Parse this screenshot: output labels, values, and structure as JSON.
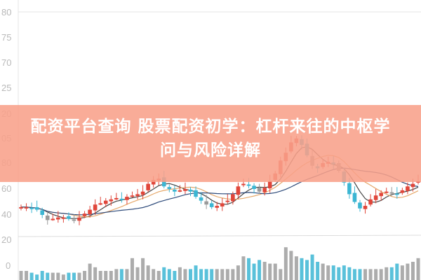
{
  "headline": {
    "line1": "配资平台查询 股票配资初学：杠杆来往的中枢学",
    "line2": "问与风险详解"
  },
  "colors": {
    "up": "#e0463a",
    "down": "#3cb6d3",
    "neutral": "#9a9a9a",
    "overlay": "#f8a08a",
    "ma_short": "#444444",
    "ma_mid": "#e6a86a",
    "ma_long": "#2d4a7a"
  },
  "chart_data": {
    "type": "candlestick",
    "price_tick_labels": [
      "80",
      "75",
      "70",
      "25",
      "20",
      "05",
      "80",
      "60",
      "40"
    ],
    "volume_tick_labels": [
      "20",
      "0"
    ],
    "closes": [
      46,
      46,
      45,
      44,
      40,
      36,
      37,
      38,
      38,
      37,
      36,
      38,
      41,
      44,
      48,
      49,
      51,
      52,
      53,
      52,
      54,
      55,
      56,
      58,
      64,
      67,
      68,
      62,
      60,
      58,
      59,
      60,
      58,
      54,
      51,
      48,
      46,
      47,
      49,
      51,
      56,
      62,
      64,
      63,
      60,
      58,
      61,
      66,
      72,
      82,
      88,
      96,
      99,
      94,
      86,
      78,
      76,
      80,
      81,
      79,
      74,
      65,
      56,
      50,
      45,
      47,
      52,
      55,
      57,
      58,
      57,
      56,
      59,
      62,
      64,
      66
    ],
    "volumes": [
      5,
      5,
      4,
      3,
      5,
      4,
      4,
      4,
      3,
      4,
      4,
      4,
      5,
      9,
      7,
      5,
      5,
      5,
      6,
      6,
      6,
      12,
      7,
      12,
      8,
      6,
      5,
      7,
      6,
      5,
      7,
      6,
      6,
      8,
      6,
      6,
      6,
      6,
      6,
      6,
      6,
      8,
      13,
      12,
      9,
      11,
      10,
      9,
      9,
      6,
      18,
      16,
      13,
      12,
      11,
      14,
      10,
      9,
      8,
      8,
      7,
      8,
      7,
      6,
      6,
      6,
      6,
      6,
      6,
      7,
      7,
      9,
      8,
      9,
      10,
      12
    ]
  }
}
